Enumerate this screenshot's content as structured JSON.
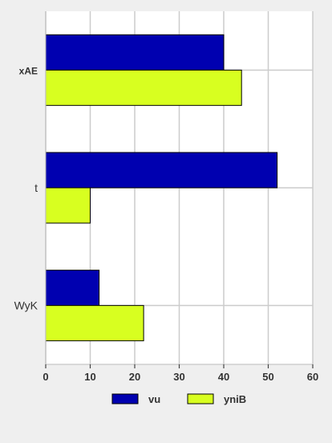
{
  "chart_data": {
    "type": "bar",
    "orientation": "horizontal",
    "categories": [
      "xAE",
      "t",
      "WyK"
    ],
    "series": [
      {
        "name": "vu",
        "values": [
          40,
          52,
          12
        ],
        "color": "#0000b0"
      },
      {
        "name": "yniB",
        "values": [
          44,
          10,
          22
        ],
        "color": "#d8ff20"
      }
    ],
    "xlim": [
      0,
      60
    ],
    "xticks": [
      0,
      10,
      20,
      30,
      40,
      50,
      60
    ],
    "grid": true,
    "legend_position": "bottom"
  }
}
